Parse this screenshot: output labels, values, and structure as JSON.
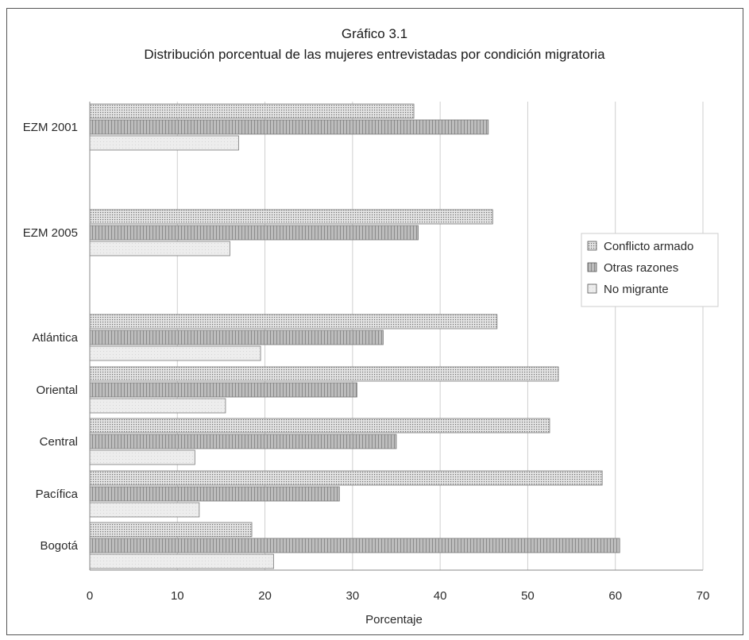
{
  "chart_data": {
    "type": "bar",
    "orientation": "horizontal",
    "title": "Gráfico 3.1",
    "subtitle": "Distribución porcentual de las mujeres entrevistadas por condición migratoria",
    "xlabel": "Porcentaje",
    "ylabel": "",
    "xlim": [
      0,
      70
    ],
    "xticks": [
      0,
      10,
      20,
      30,
      40,
      50,
      60,
      70
    ],
    "grid": true,
    "legend_position": "right",
    "categories": [
      "EZM 2001",
      "EZM 2005",
      "Atlántica",
      "Oriental",
      "Central",
      "Pacífica",
      "Bogotá"
    ],
    "series": [
      {
        "name": "Conflicto armado",
        "values": [
          37,
          46,
          46.5,
          53.5,
          52.5,
          58.5,
          18.5
        ],
        "color": "#dedede",
        "pattern": "dots"
      },
      {
        "name": "Otras razones",
        "values": [
          45.5,
          37.5,
          33.5,
          30.5,
          35,
          28.5,
          60.5
        ],
        "color": "#b4b4b4",
        "pattern": "vlines"
      },
      {
        "name": "No migrante",
        "values": [
          17,
          16,
          19.5,
          15.5,
          12,
          12.5,
          21
        ],
        "color": "#ececec",
        "pattern": "plain"
      }
    ]
  }
}
